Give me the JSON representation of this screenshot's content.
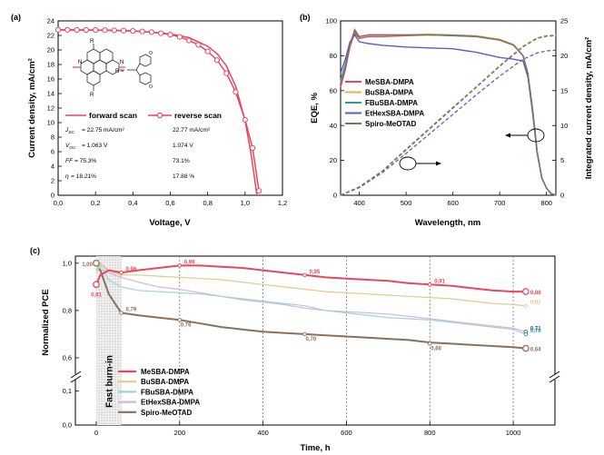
{
  "chart_data": [
    {
      "type": "line",
      "panel_label": "(a)",
      "xlabel": "Voltage, V",
      "ylabel": "Current density, mA/cm²",
      "xlim": [
        0.0,
        1.2
      ],
      "ylim": [
        0,
        24
      ],
      "xticks": [
        "0,0",
        "0,2",
        "0,4",
        "0,6",
        "0,8",
        "1,0",
        "1,2"
      ],
      "yticks": [
        "0",
        "2",
        "4",
        "6",
        "8",
        "10",
        "12",
        "14",
        "16",
        "18",
        "20",
        "22",
        "24"
      ],
      "series": [
        {
          "name": "forward scan",
          "color": "#e8475e",
          "x": [
            0,
            0.1,
            0.2,
            0.3,
            0.4,
            0.5,
            0.6,
            0.7,
            0.8,
            0.85,
            0.9,
            0.95,
            1.0,
            1.03,
            1.05,
            1.063
          ],
          "y": [
            22.75,
            22.74,
            22.72,
            22.68,
            22.6,
            22.45,
            22.2,
            21.7,
            20.5,
            19.5,
            17.8,
            15.0,
            10.3,
            6.0,
            2.5,
            0
          ]
        },
        {
          "name": "reverse scan",
          "color": "#e8475e",
          "x": [
            0,
            0.05,
            0.1,
            0.15,
            0.2,
            0.25,
            0.3,
            0.35,
            0.4,
            0.45,
            0.5,
            0.55,
            0.6,
            0.65,
            0.7,
            0.75,
            0.8,
            0.85,
            0.9,
            0.95,
            1.0,
            1.04,
            1.074
          ],
          "y": [
            22.77,
            22.77,
            22.76,
            22.75,
            22.74,
            22.72,
            22.7,
            22.66,
            22.62,
            22.55,
            22.45,
            22.3,
            22.1,
            21.8,
            21.3,
            20.7,
            19.8,
            18.6,
            16.8,
            14.2,
            10.4,
            6.5,
            0.6
          ]
        }
      ],
      "legend": {
        "placement": "center-left",
        "forward_label": "forward scan",
        "reverse_label": "reverse scan"
      },
      "table": {
        "row_labels": [
          "Jsc",
          "Voc",
          "FF",
          "η"
        ],
        "forward": [
          "= 22.75 mA/cm²",
          "= 1.063 V",
          "= 75.3%",
          "= 18.21%"
        ],
        "reverse": [
          "22.77 mA/cm²",
          "1.074 V",
          "73.1%",
          "17.88 %"
        ]
      }
    },
    {
      "type": "line",
      "panel_label": "(b)",
      "xlabel": "Wavelength, nm",
      "ylabel": "EQE, %",
      "ylabel_right": "Integrated current density, mA/cm²",
      "xlim": [
        360,
        820
      ],
      "ylim": [
        0,
        100
      ],
      "ylim_right": [
        0,
        25
      ],
      "xticks": [
        "400",
        "500",
        "600",
        "700",
        "800"
      ],
      "yticks": [
        "0",
        "20",
        "40",
        "60",
        "80",
        "100"
      ],
      "yticks_right": [
        "0",
        "5",
        "10",
        "15",
        "20",
        "25"
      ],
      "legend": {
        "placement": "top-left",
        "labels": [
          "MeSBA-DMPA",
          "BuSBA-DMPA",
          "FBuSBA-DMPA",
          "EtHexSBA-DMPA",
          "Spiro-MeOTAD"
        ]
      },
      "series": [
        {
          "name": "MeSBA-DMPA",
          "color": "#e8475e",
          "eqe_x": [
            360,
            370,
            380,
            390,
            400,
            420,
            450,
            500,
            550,
            600,
            650,
            700,
            730,
            750,
            760,
            770,
            780,
            790,
            800,
            810,
            820
          ],
          "eqe_y": [
            62,
            72,
            85,
            93,
            90,
            91,
            91,
            91.5,
            92,
            91.5,
            91,
            89,
            86,
            80,
            70,
            50,
            25,
            10,
            4,
            1,
            0
          ],
          "jint_x": [
            360,
            400,
            450,
            500,
            550,
            600,
            650,
            700,
            750,
            780,
            800,
            820
          ],
          "jint_y": [
            0,
            1.2,
            3.5,
            6.5,
            9.5,
            12.5,
            15.5,
            18.5,
            21.3,
            22.5,
            22.8,
            22.9
          ]
        },
        {
          "name": "BuSBA-DMPA",
          "color": "#e8b25a",
          "eqe_x": [
            360,
            370,
            380,
            390,
            400,
            420,
            450,
            500,
            550,
            600,
            650,
            700,
            730,
            750,
            760,
            770,
            780,
            790,
            800,
            810,
            820
          ],
          "eqe_y": [
            65,
            74,
            86,
            94,
            91,
            92,
            92,
            92,
            92.5,
            92,
            91.5,
            89.5,
            86.5,
            80,
            70,
            50,
            25,
            10,
            4,
            1,
            0
          ],
          "jint_x": [
            360,
            400,
            450,
            500,
            550,
            600,
            650,
            700,
            750,
            780,
            800,
            820
          ],
          "jint_y": [
            0,
            1.2,
            3.5,
            6.6,
            9.6,
            12.6,
            15.6,
            18.6,
            21.4,
            22.6,
            22.9,
            23.0
          ]
        },
        {
          "name": "FBuSBA-DMPA",
          "color": "#2a9d9b",
          "eqe_x": [
            360,
            370,
            380,
            390,
            400,
            420,
            450,
            500,
            550,
            600,
            650,
            700,
            730,
            750,
            760,
            770,
            780,
            790,
            800,
            810,
            820
          ],
          "eqe_y": [
            66,
            75,
            87,
            94,
            91,
            92,
            92,
            92,
            92,
            91.8,
            91.2,
            89,
            86,
            80,
            70,
            50,
            25,
            10,
            4,
            1,
            0
          ],
          "jint_x": [
            360,
            400,
            450,
            500,
            550,
            600,
            650,
            700,
            750,
            780,
            800,
            820
          ],
          "jint_y": [
            0,
            1.2,
            3.5,
            6.6,
            9.6,
            12.6,
            15.5,
            18.5,
            21.3,
            22.5,
            22.8,
            22.9
          ]
        },
        {
          "name": "EtHexSBA-DMPA",
          "color": "#5a5fc4",
          "eqe_x": [
            360,
            370,
            380,
            390,
            400,
            420,
            450,
            500,
            550,
            600,
            650,
            700,
            730,
            750,
            760,
            770,
            780,
            790,
            800,
            810,
            820
          ],
          "eqe_y": [
            70,
            78,
            88,
            92,
            88,
            87,
            86,
            85,
            84.5,
            84,
            82,
            79,
            78,
            77,
            68,
            48,
            24,
            10,
            4,
            1,
            0
          ],
          "jint_x": [
            360,
            400,
            450,
            500,
            550,
            600,
            650,
            700,
            750,
            780,
            800,
            820
          ],
          "jint_y": [
            0,
            1.1,
            3.3,
            6.0,
            8.8,
            11.6,
            14.4,
            17.1,
            19.5,
            20.4,
            20.7,
            20.8
          ]
        },
        {
          "name": "Spiro-MeOTAD",
          "color": "#8b6f5c",
          "eqe_x": [
            360,
            370,
            380,
            390,
            400,
            420,
            450,
            500,
            550,
            600,
            650,
            700,
            730,
            750,
            760,
            770,
            780,
            790,
            800,
            810,
            820
          ],
          "eqe_y": [
            64,
            73,
            86,
            95,
            91,
            92,
            92,
            92,
            92,
            91.5,
            91,
            89,
            86,
            80,
            70,
            50,
            25,
            10,
            4,
            1,
            0
          ],
          "jint_x": [
            360,
            400,
            450,
            500,
            550,
            600,
            650,
            700,
            750,
            780,
            800,
            820
          ],
          "jint_y": [
            0,
            1.2,
            3.5,
            6.5,
            9.5,
            12.5,
            15.5,
            18.5,
            21.3,
            22.5,
            22.8,
            22.9
          ]
        }
      ],
      "annotations": [
        {
          "type": "ellipse-arrow",
          "at_x": 500,
          "at_y_right": 6,
          "direction": "right"
        },
        {
          "type": "ellipse-arrow",
          "at_x": 780,
          "at_y_left": 46,
          "direction": "left"
        }
      ]
    },
    {
      "type": "line",
      "panel_label": "(c)",
      "xlabel": "Time, h",
      "ylabel": "Normalized PCE",
      "xlim": [
        -50,
        1100
      ],
      "ylim_upper": [
        0.55,
        1.03
      ],
      "ylim_lower": [
        0,
        0.12
      ],
      "xticks": [
        "0",
        "200",
        "400",
        "600",
        "800",
        "1000"
      ],
      "xtick_values": [
        0,
        200,
        400,
        600,
        800,
        1000
      ],
      "yticks_upper": [
        "0,6",
        "0,8",
        "1,0"
      ],
      "yticks_upper_values": [
        0.6,
        0.8,
        1.0
      ],
      "yticks_lower": [
        "0,0",
        "0,1"
      ],
      "yticks_lower_values": [
        0.0,
        0.1
      ],
      "vlines": [
        200,
        400,
        600,
        800,
        1000
      ],
      "shaded_region": {
        "x": [
          0,
          60
        ],
        "label": "Fast burn-in"
      },
      "legend": {
        "placement": "bottom-left",
        "labels": [
          "MeSBA-DMPA",
          "BuSBA-DMPA",
          "FBuSBA-DMPA",
          "EtHexSBA-DMPA",
          "Spiro-MeOTAD"
        ]
      },
      "series": [
        {
          "name": "MeSBA-DMPA",
          "color": "#e8475e",
          "x": [
            0,
            10,
            30,
            60,
            100,
            150,
            200,
            250,
            300,
            350,
            400,
            450,
            500,
            550,
            600,
            650,
            700,
            750,
            800,
            850,
            900,
            950,
            1000,
            1030
          ],
          "y": [
            0.91,
            0.95,
            0.97,
            0.96,
            0.97,
            0.98,
            0.99,
            0.99,
            0.985,
            0.98,
            0.97,
            0.96,
            0.95,
            0.94,
            0.935,
            0.93,
            0.925,
            0.915,
            0.91,
            0.905,
            0.895,
            0.885,
            0.88,
            0.88
          ]
        },
        {
          "name": "BuSBA-DMPA",
          "color": "#e8c98a",
          "x": [
            0,
            10,
            30,
            60,
            100,
            150,
            200,
            250,
            300,
            350,
            400,
            450,
            500,
            550,
            600,
            650,
            700,
            750,
            800,
            850,
            900,
            950,
            1000,
            1030
          ],
          "y": [
            0.96,
            1.0,
            0.97,
            0.95,
            0.95,
            0.945,
            0.94,
            0.935,
            0.93,
            0.92,
            0.91,
            0.9,
            0.89,
            0.88,
            0.875,
            0.87,
            0.865,
            0.86,
            0.855,
            0.85,
            0.84,
            0.83,
            0.825,
            0.82
          ]
        },
        {
          "name": "FBuSBA-DMPA",
          "color": "#9fd3d8",
          "x": [
            0,
            10,
            30,
            60,
            100,
            150,
            200,
            250,
            300,
            350,
            400,
            450,
            500,
            550,
            600,
            650,
            700,
            750,
            800,
            850,
            900,
            950,
            1000,
            1030
          ],
          "y": [
            0.96,
            0.99,
            0.93,
            0.9,
            0.885,
            0.88,
            0.875,
            0.87,
            0.86,
            0.85,
            0.84,
            0.83,
            0.82,
            0.8,
            0.79,
            0.78,
            0.77,
            0.765,
            0.76,
            0.75,
            0.74,
            0.73,
            0.72,
            0.7
          ]
        },
        {
          "name": "EtHexSBA-DMPA",
          "color": "#d3b6dc",
          "x": [
            0,
            10,
            30,
            60,
            100,
            150,
            200,
            250,
            300,
            350,
            400,
            450,
            500,
            550,
            600,
            650,
            700,
            750,
            800,
            850,
            900,
            950,
            1000,
            1030
          ],
          "y": [
            0.97,
            1.0,
            0.96,
            0.94,
            0.92,
            0.9,
            0.89,
            0.875,
            0.86,
            0.845,
            0.835,
            0.825,
            0.81,
            0.8,
            0.795,
            0.79,
            0.785,
            0.775,
            0.765,
            0.755,
            0.745,
            0.735,
            0.725,
            0.71
          ]
        },
        {
          "name": "Spiro-MeOTAD",
          "color": "#8b6f5c",
          "x": [
            0,
            10,
            30,
            60,
            100,
            150,
            200,
            250,
            300,
            350,
            400,
            450,
            500,
            550,
            600,
            650,
            700,
            750,
            800,
            850,
            900,
            950,
            1000,
            1030
          ],
          "y": [
            1.0,
            0.97,
            0.87,
            0.79,
            0.78,
            0.77,
            0.76,
            0.745,
            0.73,
            0.72,
            0.71,
            0.705,
            0.7,
            0.695,
            0.69,
            0.685,
            0.68,
            0.675,
            0.665,
            0.66,
            0.655,
            0.65,
            0.645,
            0.64
          ]
        }
      ],
      "point_labels": [
        {
          "series": "MeSBA-DMPA",
          "x": 0,
          "y": 0.91,
          "text": "0,91",
          "big": true,
          "pos": "below"
        },
        {
          "series": "MeSBA-DMPA",
          "x": 60,
          "y": 0.96,
          "text": "0,96",
          "pos": "right"
        },
        {
          "series": "MeSBA-DMPA",
          "x": 200,
          "y": 0.99,
          "text": "0,99",
          "pos": "right"
        },
        {
          "series": "MeSBA-DMPA",
          "x": 500,
          "y": 0.95,
          "text": "0,95",
          "pos": "right"
        },
        {
          "series": "MeSBA-DMPA",
          "x": 800,
          "y": 0.91,
          "text": "0,91",
          "pos": "right"
        },
        {
          "series": "MeSBA-DMPA",
          "x": 1030,
          "y": 0.88,
          "text": "0,88",
          "big": true,
          "pos": "right"
        },
        {
          "series": "BuSBA-DMPA",
          "x": 1030,
          "y": 0.82,
          "text": "0,82",
          "pos": "right"
        },
        {
          "series": "EtHexSBA-DMPA",
          "x": 1030,
          "y": 0.71,
          "text": "0,71",
          "pos": "right",
          "color": "#3c4fa8"
        },
        {
          "series": "FBuSBA-DMPA",
          "x": 1030,
          "y": 0.7,
          "text": "0,70",
          "pos": "right",
          "color": "#2a9d9b"
        },
        {
          "series": "Spiro-MeOTAD",
          "x": 0,
          "y": 1.0,
          "text": "1,00",
          "big": true,
          "pos": "left"
        },
        {
          "series": "Spiro-MeOTAD",
          "x": 60,
          "y": 0.79,
          "text": "0,79",
          "pos": "right"
        },
        {
          "series": "Spiro-MeOTAD",
          "x": 200,
          "y": 0.76,
          "text": "0,76",
          "pos": "below"
        },
        {
          "series": "Spiro-MeOTAD",
          "x": 500,
          "y": 0.7,
          "text": "0,70",
          "pos": "below"
        },
        {
          "series": "Spiro-MeOTAD",
          "x": 800,
          "y": 0.66,
          "text": "0,66",
          "pos": "below"
        },
        {
          "series": "Spiro-MeOTAD",
          "x": 1030,
          "y": 0.64,
          "text": "0,64",
          "big": true,
          "pos": "right"
        }
      ]
    }
  ]
}
